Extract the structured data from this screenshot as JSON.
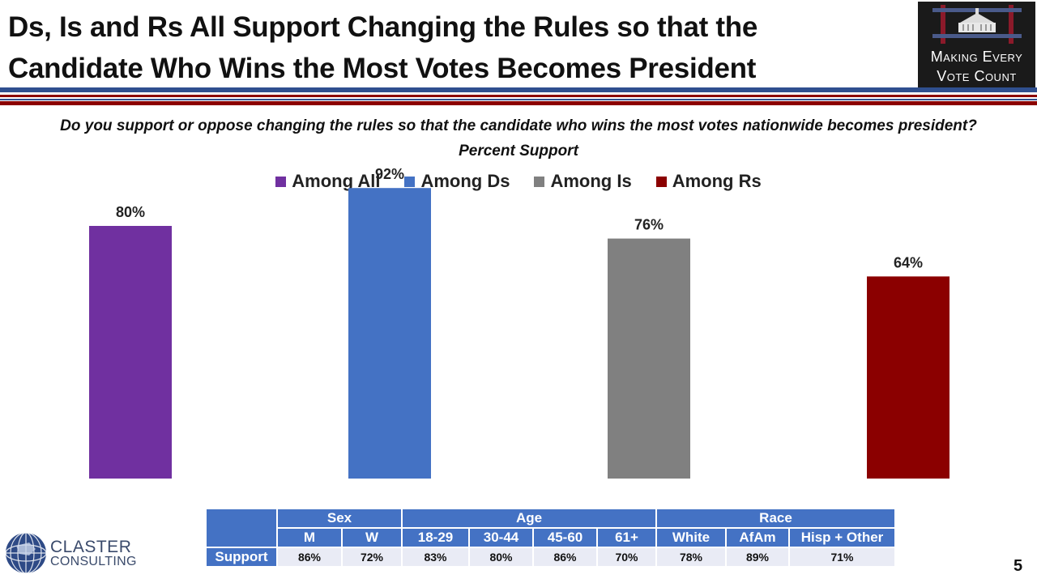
{
  "title": {
    "line1": "Ds, Is and Rs All Support Changing the Rules so that the",
    "line2": "Candidate Who Wins the Most Votes Becomes President"
  },
  "logo": {
    "line1": "Making Every",
    "line2": "Vote Count"
  },
  "question": "Do you support or oppose changing the rules so that the candidate who wins the most votes nationwide becomes president?",
  "subquestion": "Percent Support",
  "colors": {
    "rule_blue": "#2f4f8f",
    "rule_red": "#8b0000",
    "table_header": "#4472c4",
    "table_cell": "#e9ebf5"
  },
  "chart_data": {
    "type": "bar",
    "categories": [
      "Among All",
      "Among Ds",
      "Among Is",
      "Among Rs"
    ],
    "values": [
      80,
      92,
      76,
      64
    ],
    "value_labels": [
      "80%",
      "92%",
      "76%",
      "64%"
    ],
    "colors": [
      "#7030a0",
      "#4472c4",
      "#808080",
      "#8b0000"
    ],
    "title": "",
    "xlabel": "",
    "ylabel": "",
    "ylim": [
      0,
      100
    ],
    "grid": false,
    "legend": "top-center"
  },
  "table": {
    "groups": [
      {
        "label": "Sex",
        "span": 2
      },
      {
        "label": "Age",
        "span": 4
      },
      {
        "label": "Race",
        "span": 3
      }
    ],
    "columns": [
      "M",
      "W",
      "18-29",
      "30-44",
      "45-60",
      "61+",
      "White",
      "AfAm",
      "Hisp + Other"
    ],
    "row_label": "Support",
    "values": [
      "86%",
      "72%",
      "83%",
      "80%",
      "86%",
      "70%",
      "78%",
      "89%",
      "71%"
    ]
  },
  "claster": {
    "line1": "CLASTER",
    "line2": "CONSULTING"
  },
  "page_number": "5"
}
